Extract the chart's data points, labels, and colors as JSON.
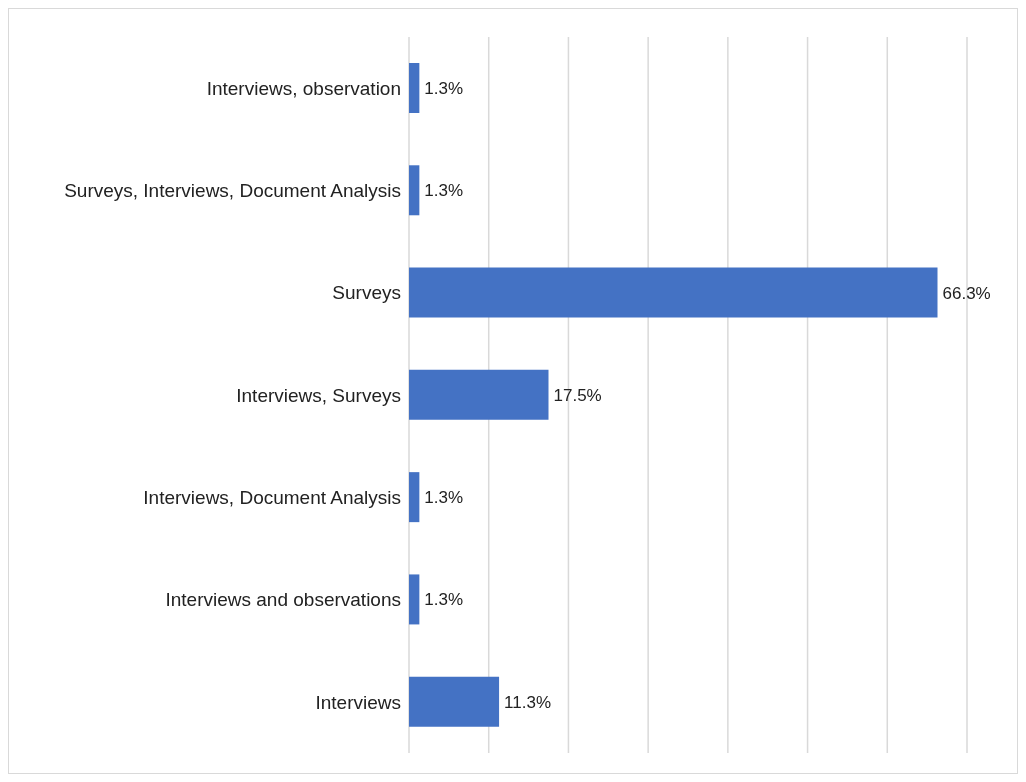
{
  "chart_data": {
    "type": "bar",
    "orientation": "horizontal",
    "categories": [
      "Interviews, observation",
      "Surveys, Interviews, Document Analysis",
      "Surveys",
      "Interviews, Surveys",
      "Interviews, Document Analysis",
      "Interviews and observations",
      "Interviews"
    ],
    "values": [
      1.3,
      1.3,
      66.3,
      17.5,
      1.3,
      1.3,
      11.3
    ],
    "value_labels": [
      "1.3%",
      "1.3%",
      "66.3%",
      "17.5%",
      "1.3%",
      "1.3%",
      "11.3%"
    ],
    "color": "#4472c4",
    "xlim": [
      0,
      70
    ],
    "xticks": [
      {
        "value": 0,
        "label": null
      },
      {
        "value": 10,
        "label": null
      },
      {
        "value": 20,
        "label": null
      },
      {
        "value": 30,
        "label": null
      },
      {
        "value": 40,
        "label": null
      },
      {
        "value": 50,
        "label": null
      },
      {
        "value": 60,
        "label": null
      },
      {
        "value": 70,
        "label": null
      }
    ],
    "grid": "x",
    "tick_labels": "y",
    "legend": false
  }
}
